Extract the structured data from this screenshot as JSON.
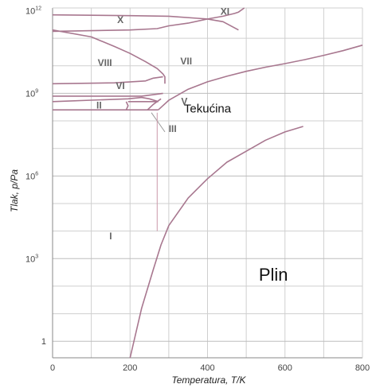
{
  "chart_data": {
    "type": "line",
    "title": "",
    "xlabel": "Temperatura, T/K",
    "ylabel": "Tlak, p/Pa",
    "x_ticks": [
      {
        "value": 0,
        "label": "0"
      },
      {
        "value": 200,
        "label": "200"
      },
      {
        "value": 400,
        "label": "400"
      },
      {
        "value": 600,
        "label": "600"
      },
      {
        "value": 800,
        "label": "800"
      }
    ],
    "y_ticks": [
      {
        "exp": 0,
        "base": "1",
        "sup": ""
      },
      {
        "exp": 3,
        "base": "10",
        "sup": "3"
      },
      {
        "exp": 6,
        "base": "10",
        "sup": "6"
      },
      {
        "exp": 9,
        "base": "10",
        "sup": "9"
      },
      {
        "exp": 12,
        "base": "10",
        "sup": "12"
      }
    ],
    "xlim": [
      0,
      800
    ],
    "ylim_log10": [
      -0.6,
      12.1
    ],
    "y_scale": "log",
    "grid": true,
    "line_color": "#a8778f",
    "series": [
      {
        "x": [
          200,
          230,
          260,
          280,
          300,
          350,
          400,
          450,
          500,
          550,
          600,
          647
        ],
        "log10_y": [
          -0.6,
          1.2,
          2.6,
          3.5,
          4.2,
          5.2,
          5.9,
          6.5,
          6.9,
          7.3,
          7.6,
          7.8
        ]
      },
      {
        "x": [
          190,
          273
        ],
        "log10_y": [
          8.4,
          8.4
        ]
      },
      {
        "x": [
          195,
          273
        ],
        "log10_y": [
          8.7,
          8.7
        ]
      },
      {
        "x": [
          273,
          300,
          350,
          400,
          450,
          500,
          550,
          600,
          650,
          700,
          750,
          800
        ],
        "log10_y": [
          8.4,
          8.75,
          9.15,
          9.42,
          9.62,
          9.8,
          9.95,
          10.08,
          10.22,
          10.38,
          10.55,
          10.75
        ]
      },
      {
        "x": [
          0,
          160,
          240,
          260,
          285
        ],
        "log10_y": [
          9.35,
          9.38,
          9.45,
          9.55,
          9.6
        ]
      },
      {
        "x": [
          0,
          200,
          270,
          300,
          350,
          400,
          440,
          470,
          480,
          495
        ],
        "log10_y": [
          11.25,
          11.3,
          11.35,
          11.45,
          11.55,
          11.7,
          11.8,
          11.9,
          11.95,
          12.1
        ]
      },
      {
        "x": [
          0,
          200,
          300,
          400,
          440,
          480
        ],
        "log10_y": [
          11.85,
          11.82,
          11.8,
          11.7,
          11.6,
          11.3
        ]
      },
      {
        "x": [
          0,
          100,
          160,
          200,
          240,
          270,
          285,
          290,
          290
        ],
        "log10_y": [
          11.3,
          11.05,
          10.7,
          10.45,
          10.15,
          9.9,
          9.7,
          9.6,
          9.35
        ]
      },
      {
        "x": [
          0,
          190,
          195,
          190
        ],
        "log10_y": [
          8.4,
          8.4,
          8.55,
          8.7
        ]
      },
      {
        "x": [
          0,
          195,
          230,
          250,
          273
        ],
        "log10_y": [
          8.7,
          8.8,
          8.85,
          8.8,
          8.7
        ]
      },
      {
        "x": [
          245,
          260,
          280
        ],
        "log10_y": [
          8.4,
          8.6,
          8.8
        ]
      },
      {
        "x": [
          0,
          230,
          260,
          285
        ],
        "log10_y": [
          8.9,
          8.9,
          8.95,
          9.0
        ]
      }
    ],
    "thin_lines": [
      {
        "x": [
          255,
          270,
          290
        ],
        "log10_y": [
          8.3,
          8.0,
          7.6
        ],
        "color": "#999999"
      },
      {
        "x": [
          270,
          270
        ],
        "log10_y": [
          8.3,
          4.0
        ],
        "color": "#cc99aa"
      }
    ],
    "region_labels": [
      {
        "text": "XI",
        "x": 445,
        "log10_y": 11.85,
        "style": "phase"
      },
      {
        "text": "X",
        "x": 175,
        "log10_y": 11.55,
        "style": "phase"
      },
      {
        "text": "VIII",
        "x": 135,
        "log10_y": 10.0,
        "style": "phase"
      },
      {
        "text": "VII",
        "x": 345,
        "log10_y": 10.05,
        "style": "phase"
      },
      {
        "text": "VI",
        "x": 175,
        "log10_y": 9.15,
        "style": "phase"
      },
      {
        "text": "V",
        "x": 340,
        "log10_y": 8.6,
        "style": "phase"
      },
      {
        "text": "II",
        "x": 120,
        "log10_y": 8.45,
        "style": "phase"
      },
      {
        "text": "III",
        "x": 310,
        "log10_y": 7.6,
        "style": "phase"
      },
      {
        "text": "Tekućina",
        "x": 400,
        "log10_y": 8.3,
        "style": "region-big"
      },
      {
        "text": "I",
        "x": 150,
        "log10_y": 3.7,
        "style": "phase"
      },
      {
        "text": "Plin",
        "x": 570,
        "log10_y": 2.2,
        "style": "region-huge"
      }
    ]
  }
}
